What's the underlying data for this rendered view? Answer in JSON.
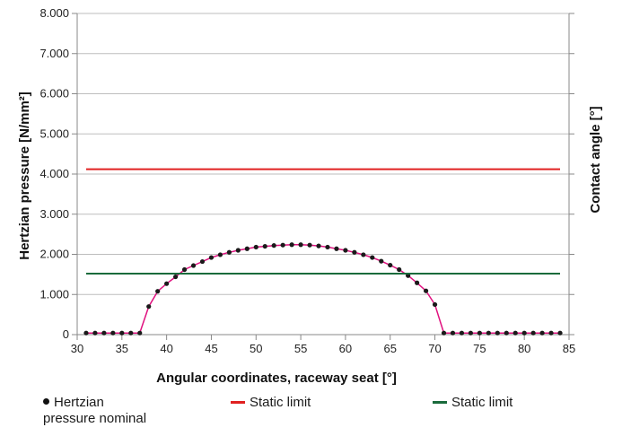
{
  "chart_data": {
    "type": "line",
    "title": "",
    "xlabel": "Angular coordinates, raceway seat [°]",
    "ylabel": "Hertzian pressure [N/mm²]",
    "y2label": "Contact angle [°]",
    "xlim": [
      30,
      85
    ],
    "ylim": [
      0,
      8000
    ],
    "x_ticks": [
      "30",
      "35",
      "40",
      "45",
      "50",
      "55",
      "60",
      "65",
      "70",
      "75",
      "80",
      "85"
    ],
    "y_ticks": [
      "0",
      "1.000",
      "2.000",
      "3.000",
      "4.000",
      "5.000",
      "6.000",
      "7.000",
      "8.000"
    ],
    "grid": "horizontal",
    "legend_position": "bottom",
    "series": [
      {
        "name": "Hertzian pressure nominal",
        "color": "#e0117f",
        "marker_color": "#1a1a1a",
        "x": [
          31,
          32,
          33,
          34,
          35,
          36,
          37,
          38,
          39,
          40,
          41,
          42,
          43,
          44,
          45,
          46,
          47,
          48,
          49,
          50,
          51,
          52,
          53,
          54,
          55,
          56,
          57,
          58,
          59,
          60,
          61,
          62,
          63,
          64,
          65,
          66,
          67,
          68,
          69,
          70,
          71,
          72,
          73,
          74,
          75,
          76,
          77,
          78,
          79,
          80,
          81,
          82,
          83,
          84
        ],
        "values": [
          40,
          40,
          40,
          40,
          40,
          40,
          40,
          700,
          1080,
          1270,
          1440,
          1620,
          1720,
          1820,
          1920,
          1990,
          2050,
          2100,
          2140,
          2180,
          2200,
          2220,
          2230,
          2240,
          2240,
          2230,
          2210,
          2180,
          2140,
          2100,
          2050,
          1990,
          1920,
          1830,
          1730,
          1620,
          1470,
          1290,
          1090,
          750,
          40,
          40,
          40,
          40,
          40,
          40,
          40,
          40,
          40,
          40,
          40,
          40,
          40,
          40
        ]
      },
      {
        "name": "Static limit",
        "color": "#e02020",
        "x": [
          31,
          84
        ],
        "values": [
          4120,
          4120
        ]
      },
      {
        "name": "Static limit",
        "color": "#1a6b3c",
        "x": [
          31,
          84
        ],
        "values": [
          1520,
          1520
        ]
      }
    ]
  },
  "legend": [
    {
      "label": "Hertzian pressure nominal",
      "line1": "Hertzian",
      "line2": "pressure nominal",
      "color": "#1a1a1a"
    },
    {
      "label": "Static limit",
      "color": "#e02020"
    },
    {
      "label": "Static limit",
      "color": "#1a6b3c"
    }
  ]
}
